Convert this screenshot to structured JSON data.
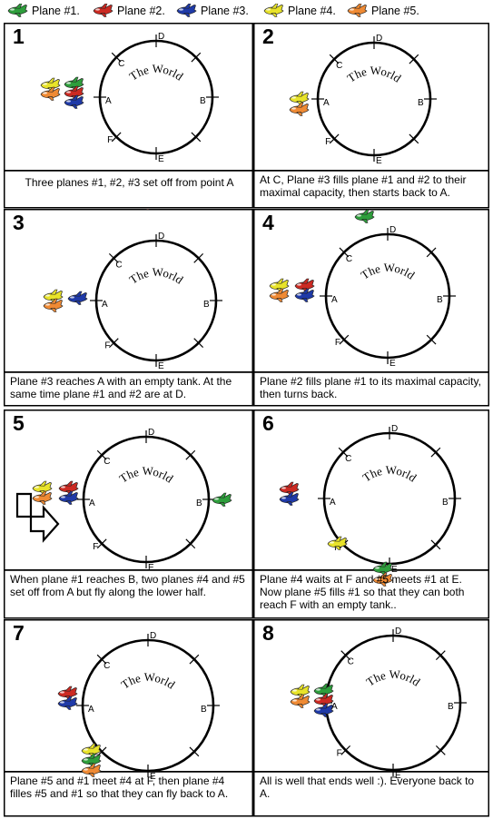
{
  "legend": [
    {
      "label": "Plane #1.",
      "color": "#2e9e3c"
    },
    {
      "label": "Plane #2.",
      "color": "#cc2a22"
    },
    {
      "label": "Plane #3.",
      "color": "#1f3aa8"
    },
    {
      "label": "Plane #4.",
      "color": "#e8e32a"
    },
    {
      "label": "Plane #5.",
      "color": "#ef8a34"
    }
  ],
  "world_label": "The World",
  "points": {
    "A": "A",
    "B": "B",
    "C": "C",
    "D": "D",
    "E": "E",
    "F": "F"
  },
  "panels": [
    {
      "number": "1",
      "caption": "Three planes #1, #2, #3 set off from point A"
    },
    {
      "number": "2",
      "caption": "At C, Plane #3 fills plane #1 and #2 to their maximal capacity, then starts back to A."
    },
    {
      "number": "3",
      "caption": "Plane #3 reaches A with an empty tank. At the same time plane #1 and #2 are at D."
    },
    {
      "number": "4",
      "caption": "Plane #2 fills plane #1 to its maximal capacity,  then turns back."
    },
    {
      "number": "5",
      "caption": "When plane #1 reaches B, two planes #4 and #5 set off from A but fly along the lower half."
    },
    {
      "number": "6",
      "caption": "Plane #4 waits at F and #5 meets #1 at E. Now plane #5 fills #1 so that they can both reach F with an empty tank.."
    },
    {
      "number": "7",
      "caption": "Plane #5 and #1 meet #4 at F, then plane #4 filles #5 and #1 so that they can fly back to A."
    },
    {
      "number": "8",
      "caption": "All is well that ends well :). Everyone back to A."
    }
  ]
}
